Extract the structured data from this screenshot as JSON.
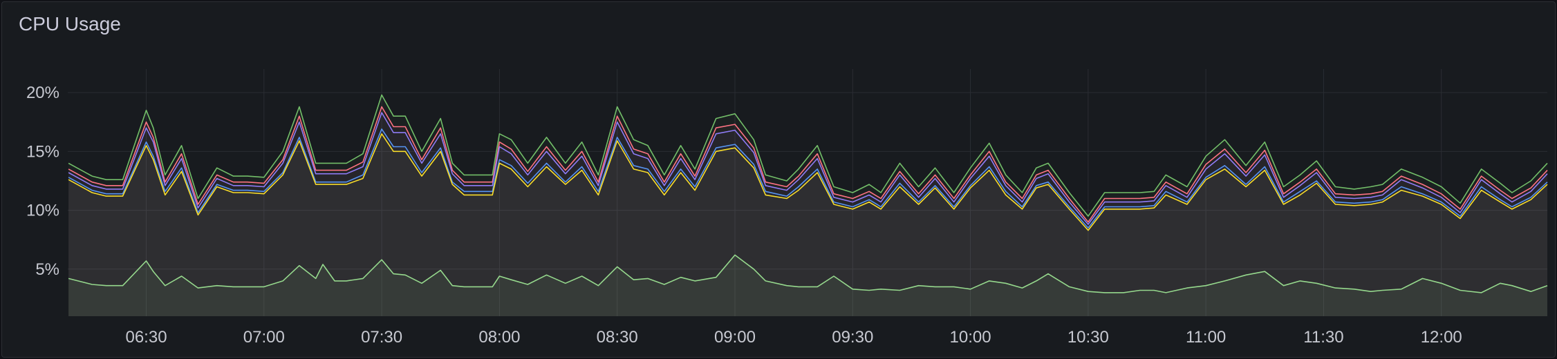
{
  "panel": {
    "title": "CPU Usage"
  },
  "chart_data": {
    "type": "area",
    "title": "CPU Usage",
    "xlabel": "",
    "ylabel": "",
    "x_tick_labels": [
      "06:30",
      "07:00",
      "07:30",
      "08:00",
      "08:30",
      "09:00",
      "09:30",
      "10:00",
      "10:30",
      "11:00",
      "11:30",
      "12:00"
    ],
    "y_tick_labels": [
      "5%",
      "10%",
      "15%",
      "20%"
    ],
    "y_ticks": [
      5,
      10,
      15,
      20
    ],
    "ylim": [
      1,
      22
    ],
    "xlim_minutes": [
      6.1667,
      12.45
    ],
    "grid": true,
    "legend": "none",
    "x_hours": [
      6.17,
      6.27,
      6.33,
      6.4,
      6.5,
      6.53,
      6.58,
      6.65,
      6.72,
      6.8,
      6.87,
      6.93,
      7.0,
      7.08,
      7.15,
      7.22,
      7.25,
      7.3,
      7.35,
      7.42,
      7.5,
      7.55,
      7.6,
      7.67,
      7.75,
      7.8,
      7.85,
      7.92,
      7.97,
      8.0,
      8.05,
      8.12,
      8.2,
      8.28,
      8.35,
      8.42,
      8.5,
      8.57,
      8.63,
      8.7,
      8.77,
      8.83,
      8.92,
      9.0,
      9.08,
      9.13,
      9.22,
      9.27,
      9.35,
      9.42,
      9.5,
      9.57,
      9.62,
      9.7,
      9.78,
      9.85,
      9.93,
      10.0,
      10.08,
      10.15,
      10.22,
      10.28,
      10.33,
      10.42,
      10.5,
      10.57,
      10.65,
      10.72,
      10.78,
      10.83,
      10.92,
      11.0,
      11.08,
      11.17,
      11.25,
      11.33,
      11.4,
      11.47,
      11.55,
      11.63,
      11.7,
      11.75,
      11.83,
      11.92,
      12.0,
      12.08,
      12.17,
      12.25,
      12.3,
      12.38,
      12.45
    ],
    "series": [
      {
        "color": "#73bf69",
        "values": [
          14,
          12.9,
          12.6,
          12.6,
          18.5,
          17,
          13,
          15.5,
          11,
          13.6,
          12.9,
          12.9,
          12.8,
          15,
          18.8,
          14,
          14,
          14,
          14,
          14.8,
          19.8,
          18,
          18,
          15,
          17.8,
          14,
          13,
          13,
          13,
          16.5,
          16,
          14,
          16.2,
          14,
          15.8,
          13,
          18.8,
          16,
          15.5,
          13,
          15.5,
          13.5,
          17.8,
          18.2,
          16,
          13,
          12.5,
          13.5,
          15.5,
          12,
          11.5,
          12.2,
          11.5,
          14,
          12,
          13.6,
          11.5,
          13.6,
          15.7,
          13,
          11.5,
          13.6,
          14,
          11.5,
          9.5,
          11.5,
          11.5,
          11.5,
          11.6,
          13,
          12,
          14.6,
          16,
          13.8,
          15.8,
          12,
          13,
          14.2,
          12,
          11.8,
          12,
          12.2,
          13.5,
          12.8,
          12,
          10.6,
          13.5,
          12.3,
          11.5,
          12.5,
          14
        ]
      },
      {
        "color": "#ff7383",
        "values": [
          13.5,
          12.4,
          12.1,
          12.1,
          17.5,
          16.2,
          12.4,
          14.8,
          10.5,
          13,
          12.4,
          12.4,
          12.3,
          14.3,
          18,
          13.4,
          13.4,
          13.4,
          13.4,
          14.1,
          18.8,
          17.1,
          17.1,
          14.3,
          17,
          13.4,
          12.4,
          12.4,
          12.4,
          15.8,
          15.2,
          13.3,
          15.4,
          13.4,
          15,
          12.4,
          18,
          15.2,
          14.8,
          12.4,
          14.8,
          12.9,
          17,
          17.3,
          15.3,
          12.4,
          12,
          12.9,
          14.8,
          11.4,
          11,
          11.6,
          11,
          13.3,
          11.4,
          13,
          11,
          13,
          15,
          12.4,
          11,
          13,
          13.4,
          11,
          9,
          11,
          11,
          11,
          11.1,
          12.4,
          11.4,
          13.9,
          15.2,
          13.2,
          15.1,
          11.4,
          12.4,
          13.5,
          11.4,
          11.3,
          11.4,
          11.6,
          12.9,
          12.2,
          11.4,
          10.1,
          12.9,
          11.7,
          11,
          11.9,
          13.4
        ]
      },
      {
        "color": "#8f7cf7",
        "values": [
          13.2,
          12.1,
          11.8,
          11.8,
          17,
          15.8,
          12.1,
          14.4,
          10.2,
          12.7,
          12.1,
          12.1,
          12,
          14,
          17.5,
          13.1,
          13.1,
          13.1,
          13.1,
          13.7,
          18.3,
          16.6,
          16.6,
          14,
          16.5,
          13.1,
          12.1,
          12.1,
          12.1,
          15.4,
          14.8,
          13,
          15,
          13.1,
          14.6,
          12.1,
          17.5,
          14.8,
          14.4,
          12.1,
          14.4,
          12.6,
          16.5,
          16.8,
          14.9,
          12.1,
          11.7,
          12.6,
          14.4,
          11.1,
          10.7,
          11.3,
          10.7,
          13,
          11.1,
          12.7,
          10.7,
          12.7,
          14.6,
          12.1,
          10.7,
          12.7,
          13.1,
          10.7,
          8.8,
          10.7,
          10.7,
          10.7,
          10.8,
          12.1,
          11.1,
          13.5,
          14.8,
          12.9,
          14.7,
          11.1,
          12.1,
          13.2,
          11.1,
          11,
          11.1,
          11.3,
          12.6,
          11.9,
          11.1,
          9.8,
          12.6,
          11.4,
          10.7,
          11.6,
          13.1
        ]
      },
      {
        "color": "#5794f2",
        "values": [
          12.8,
          11.7,
          11.4,
          11.4,
          15.8,
          14.6,
          11.6,
          13.6,
          9.8,
          12.2,
          11.7,
          11.7,
          11.6,
          13.2,
          16.2,
          12.4,
          12.4,
          12.4,
          12.4,
          13,
          16.9,
          15.4,
          15.4,
          13.2,
          15.3,
          12.4,
          11.6,
          11.6,
          11.6,
          14.3,
          13.8,
          12.3,
          14,
          12.4,
          13.7,
          11.6,
          16.2,
          13.8,
          13.5,
          11.6,
          13.5,
          12,
          15.3,
          15.6,
          13.9,
          11.6,
          11.2,
          12,
          13.5,
          10.7,
          10.3,
          10.9,
          10.3,
          12.3,
          10.7,
          12.1,
          10.3,
          12.1,
          13.7,
          11.6,
          10.3,
          12.1,
          12.4,
          10.3,
          8.5,
          10.3,
          10.3,
          10.3,
          10.4,
          11.6,
          10.7,
          12.8,
          13.8,
          12.2,
          13.7,
          10.7,
          11.6,
          12.5,
          10.7,
          10.6,
          10.7,
          10.9,
          12,
          11.4,
          10.7,
          9.5,
          12,
          10.9,
          10.3,
          11.1,
          12.4
        ]
      },
      {
        "color": "#fade2a",
        "values": [
          12.6,
          11.5,
          11.2,
          11.2,
          15.5,
          14.3,
          11.3,
          13.3,
          9.6,
          12,
          11.5,
          11.5,
          11.4,
          13,
          15.9,
          12.2,
          12.2,
          12.2,
          12.2,
          12.7,
          16.5,
          15,
          15,
          12.9,
          15,
          12.2,
          11.3,
          11.3,
          11.3,
          14,
          13.5,
          12,
          13.7,
          12.2,
          13.4,
          11.3,
          15.9,
          13.5,
          13.2,
          11.3,
          13.2,
          11.7,
          15,
          15.3,
          13.6,
          11.3,
          11,
          11.7,
          13.2,
          10.5,
          10.1,
          10.7,
          10.1,
          12,
          10.5,
          11.9,
          10.1,
          11.9,
          13.4,
          11.3,
          10.1,
          11.9,
          12.2,
          10.1,
          8.3,
          10.1,
          10.1,
          10.1,
          10.2,
          11.3,
          10.5,
          12.6,
          13.5,
          12,
          13.4,
          10.5,
          11.3,
          12.3,
          10.5,
          10.4,
          10.5,
          10.7,
          11.7,
          11.2,
          10.5,
          9.3,
          11.7,
          10.7,
          10.1,
          10.9,
          12.2
        ]
      },
      {
        "color": "#96d98d",
        "values": [
          4.2,
          3.7,
          3.6,
          3.6,
          5.7,
          4.8,
          3.6,
          4.4,
          3.4,
          3.6,
          3.5,
          3.5,
          3.5,
          4,
          5.3,
          4.2,
          5.4,
          4,
          4,
          4.2,
          5.8,
          4.6,
          4.5,
          3.8,
          4.9,
          3.6,
          3.5,
          3.5,
          3.5,
          4.4,
          4.1,
          3.7,
          4.5,
          3.8,
          4.4,
          3.6,
          5.2,
          4.1,
          4.2,
          3.7,
          4.3,
          4,
          4.3,
          6.2,
          5,
          4,
          3.6,
          3.5,
          3.5,
          4.4,
          3.3,
          3.2,
          3.3,
          3.2,
          3.6,
          3.5,
          3.5,
          3.3,
          4,
          3.8,
          3.4,
          4,
          4.6,
          3.5,
          3.1,
          3,
          3,
          3.2,
          3.2,
          3,
          3.4,
          3.6,
          4,
          4.5,
          4.8,
          3.6,
          4,
          3.8,
          3.4,
          3.3,
          3.1,
          3.2,
          3.3,
          4.2,
          3.8,
          3.2,
          3,
          3.8,
          3.6,
          3.1,
          3.6
        ]
      }
    ]
  }
}
